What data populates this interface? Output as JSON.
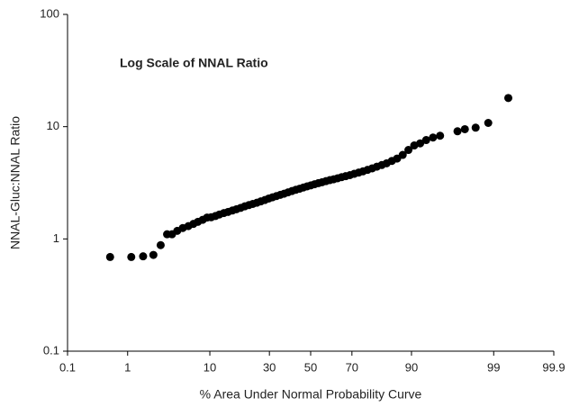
{
  "chart_data": {
    "type": "scatter",
    "title": "Log Scale of NNAL Ratio",
    "xlabel": "% Area Under Normal Probability Curve",
    "ylabel": "NNAL-Gluc:NNAL Ratio",
    "xscale": "probit",
    "yscale": "log",
    "xlim": [
      0.1,
      99.9
    ],
    "ylim": [
      0.1,
      100
    ],
    "xticks": [
      0.1,
      1,
      10,
      30,
      50,
      70,
      90,
      99,
      99.9
    ],
    "yticks": [
      0.1,
      1,
      10,
      100
    ],
    "color": "#000000",
    "x": [
      0.54,
      1.13,
      1.66,
      2.28,
      2.83,
      3.4,
      3.9,
      4.5,
      5.2,
      6,
      6.8,
      7.6,
      8.5,
      9.4,
      10.3,
      11.3,
      12.3,
      13.5,
      14.7,
      16,
      17.3,
      18.7,
      20.1,
      21.6,
      23.1,
      24.7,
      26.3,
      28,
      29.7,
      31.4,
      33.2,
      35,
      36.8,
      38.7,
      40.6,
      42.5,
      44.4,
      46.3,
      48.2,
      50.1,
      52,
      53.9,
      55.8,
      57.7,
      59.6,
      61.5,
      63.4,
      65.3,
      67.2,
      69.1,
      71,
      72.9,
      74.7,
      76.5,
      78.3,
      80,
      81.7,
      83.3,
      84.9,
      86.4,
      87.9,
      89.3,
      90.6,
      91.8,
      92.9,
      94,
      95,
      96.9,
      97.5,
      98.2,
      98.8,
      99.4
    ],
    "values": [
      0.69,
      0.69,
      0.7,
      0.72,
      0.88,
      1.1,
      1.1,
      1.18,
      1.25,
      1.3,
      1.36,
      1.42,
      1.48,
      1.55,
      1.56,
      1.6,
      1.65,
      1.7,
      1.74,
      1.79,
      1.84,
      1.89,
      1.95,
      2.0,
      2.05,
      2.1,
      2.16,
      2.22,
      2.29,
      2.35,
      2.41,
      2.47,
      2.53,
      2.6,
      2.67,
      2.74,
      2.8,
      2.87,
      2.94,
      3.0,
      3.07,
      3.14,
      3.2,
      3.27,
      3.34,
      3.4,
      3.47,
      3.55,
      3.62,
      3.7,
      3.8,
      3.9,
      4.0,
      4.12,
      4.25,
      4.4,
      4.55,
      4.72,
      4.95,
      5.2,
      5.6,
      6.2,
      6.8,
      7.1,
      7.6,
      8.0,
      8.3,
      9.1,
      9.5,
      9.8,
      10.8,
      18
    ]
  }
}
